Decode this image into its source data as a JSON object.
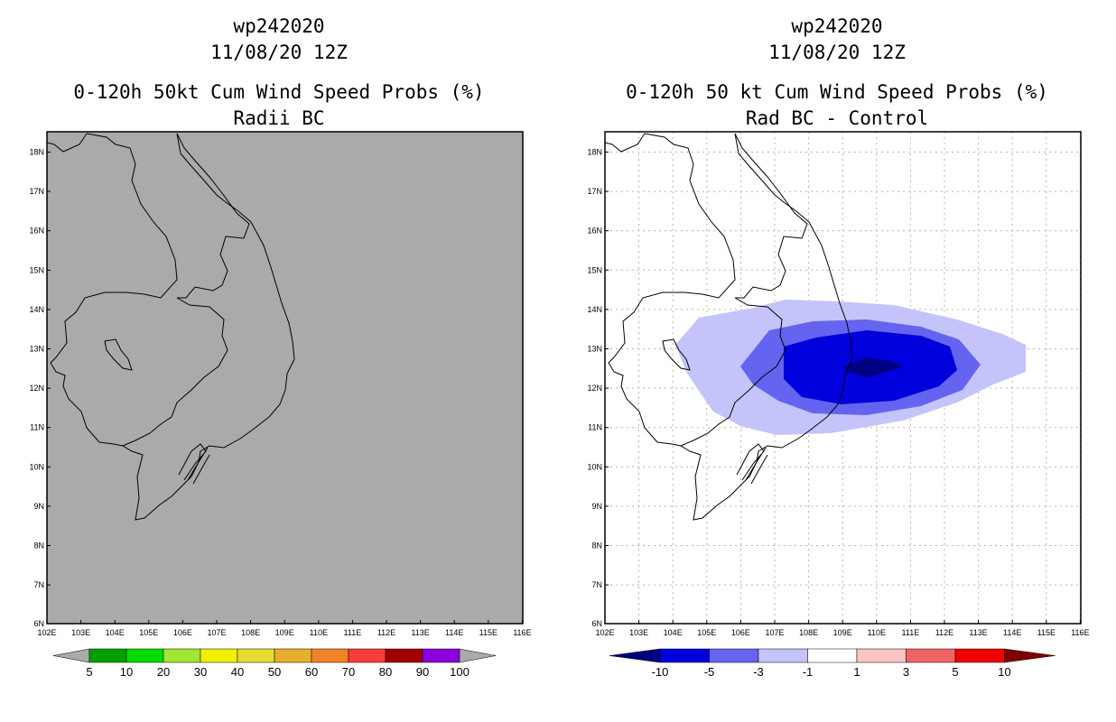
{
  "panels": [
    {
      "id": "left",
      "storm_id": "wp242020",
      "datetime": "11/08/20 12Z",
      "product": "0-120h 50kt Cum Wind Speed Probs (%)",
      "subtitle": "Radii BC",
      "background_color": "#aaaaaa",
      "colorbar": {
        "labels": [
          "5",
          "10",
          "20",
          "30",
          "40",
          "50",
          "60",
          "70",
          "80",
          "90",
          "100"
        ],
        "colors": [
          "#00a000",
          "#00dc00",
          "#a0e632",
          "#f0f000",
          "#e6dc32",
          "#e6af2d",
          "#f08228",
          "#fa3c3c",
          "#a00000",
          "#8c00dc"
        ],
        "end_color": "#aaaaaa"
      }
    },
    {
      "id": "right",
      "storm_id": "wp242020",
      "datetime": "11/08/20 12Z",
      "product": "0-120h 50 kt Cum Wind Speed Probs (%)",
      "subtitle": "Rad BC - Control",
      "background_color": "#ffffff",
      "colorbar": {
        "labels": [
          "-10",
          "-5",
          "-3",
          "-1",
          "1",
          "3",
          "5",
          "10"
        ],
        "colors": [
          "#0000dc",
          "#6464f0",
          "#c4c4fa",
          "#ffffff",
          "#fac4c4",
          "#f06464",
          "#f00000"
        ],
        "end_low_color": "#000080",
        "end_high_color": "#800000"
      },
      "contour_colors": {
        "lt_m10": "#000080",
        "m10_m5": "#0000dc",
        "m5_m3": "#6464f0",
        "m3_m1": "#c4c4fa"
      }
    }
  ],
  "map": {
    "lat_labels": [
      "18N",
      "17N",
      "16N",
      "15N",
      "14N",
      "13N",
      "12N",
      "11N",
      "10N",
      "9N",
      "8N",
      "7N",
      "6N"
    ],
    "lon_labels": [
      "102E",
      "103E",
      "104E",
      "105E",
      "106E",
      "107E",
      "108E",
      "109E",
      "110E",
      "111E",
      "112E",
      "113E",
      "114E",
      "115E",
      "116E"
    ]
  }
}
